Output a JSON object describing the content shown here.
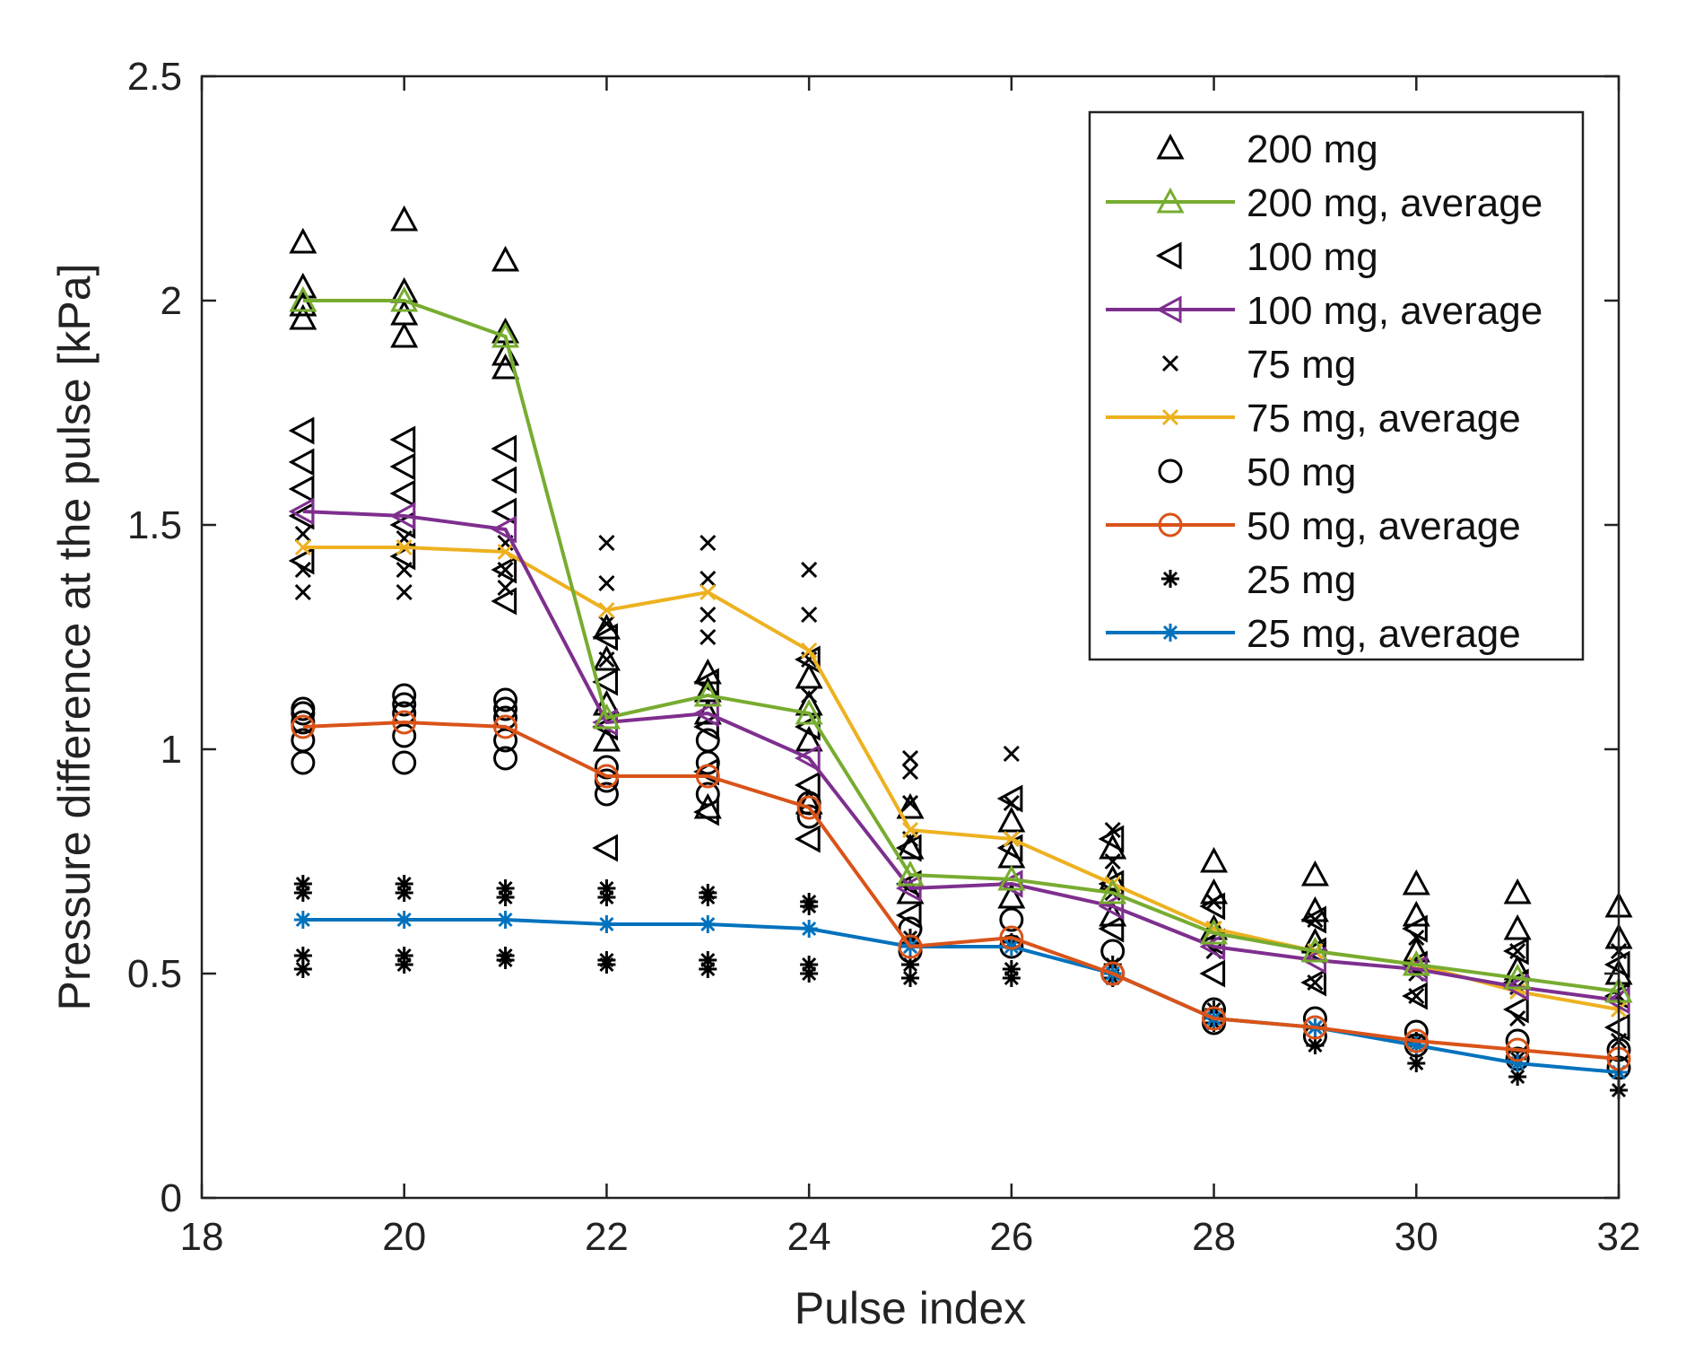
{
  "chart_data": {
    "type": "scatter",
    "title": "",
    "xlabel": "Pulse index",
    "ylabel": "Pressure difference at the pulse [kPa]",
    "xlim": [
      18,
      32
    ],
    "ylim": [
      0,
      2.5
    ],
    "xticks": [
      18,
      20,
      22,
      24,
      26,
      28,
      30,
      32
    ],
    "xtick_labels": [
      "18",
      "20",
      "22",
      "24",
      "26",
      "28",
      "30",
      "32"
    ],
    "yticks": [
      0,
      0.5,
      1,
      1.5,
      2,
      2.5
    ],
    "ytick_labels": [
      "0",
      "0.5",
      "1",
      "1.5",
      "2",
      "2.5"
    ],
    "grid": false,
    "legend_position": "top-right",
    "x": [
      19,
      20,
      21,
      22,
      23,
      24,
      25,
      26,
      27,
      28,
      29,
      30,
      31,
      32
    ],
    "series": [
      {
        "name": "200 mg",
        "kind": "scatter",
        "marker": "triangle-up",
        "color": "#000000",
        "points": [
          [
            19,
            2.13
          ],
          [
            19,
            2.03
          ],
          [
            19,
            1.99
          ],
          [
            19,
            1.96
          ],
          [
            20,
            2.18
          ],
          [
            20,
            2.02
          ],
          [
            20,
            1.97
          ],
          [
            20,
            1.92
          ],
          [
            21,
            2.09
          ],
          [
            21,
            1.93
          ],
          [
            21,
            1.88
          ],
          [
            21,
            1.85
          ],
          [
            22,
            1.27
          ],
          [
            22,
            1.2
          ],
          [
            22,
            1.1
          ],
          [
            22,
            1.02
          ],
          [
            23,
            1.17
          ],
          [
            23,
            1.13
          ],
          [
            23,
            1.08
          ],
          [
            23,
            0.87
          ],
          [
            24,
            1.16
          ],
          [
            24,
            1.1
          ],
          [
            24,
            1.02
          ],
          [
            24,
            0.88
          ],
          [
            25,
            0.87
          ],
          [
            25,
            0.78
          ],
          [
            25,
            0.68
          ],
          [
            26,
            0.84
          ],
          [
            26,
            0.76
          ],
          [
            26,
            0.67
          ],
          [
            27,
            0.78
          ],
          [
            27,
            0.71
          ],
          [
            27,
            0.63
          ],
          [
            28,
            0.75
          ],
          [
            28,
            0.68
          ],
          [
            28,
            0.6
          ],
          [
            29,
            0.72
          ],
          [
            29,
            0.64
          ],
          [
            29,
            0.57
          ],
          [
            30,
            0.7
          ],
          [
            30,
            0.63
          ],
          [
            30,
            0.55
          ],
          [
            31,
            0.68
          ],
          [
            31,
            0.6
          ],
          [
            31,
            0.51
          ],
          [
            32,
            0.65
          ],
          [
            32,
            0.58
          ],
          [
            32,
            0.5
          ]
        ]
      },
      {
        "name": "200 mg, average",
        "kind": "line",
        "marker": "triangle-up",
        "color": "#77AC30",
        "values": [
          2.0,
          2.0,
          1.92,
          1.07,
          1.12,
          1.08,
          0.72,
          0.71,
          0.68,
          0.59,
          0.55,
          0.52,
          0.49,
          0.46
        ]
      },
      {
        "name": "100 mg",
        "kind": "scatter",
        "marker": "triangle-left",
        "color": "#000000",
        "points": [
          [
            19,
            1.71
          ],
          [
            19,
            1.64
          ],
          [
            19,
            1.58
          ],
          [
            19,
            1.52
          ],
          [
            19,
            1.42
          ],
          [
            20,
            1.69
          ],
          [
            20,
            1.63
          ],
          [
            20,
            1.57
          ],
          [
            20,
            1.5
          ],
          [
            20,
            1.43
          ],
          [
            21,
            1.67
          ],
          [
            21,
            1.6
          ],
          [
            21,
            1.53
          ],
          [
            21,
            1.4
          ],
          [
            21,
            1.33
          ],
          [
            22,
            1.25
          ],
          [
            22,
            1.15
          ],
          [
            22,
            1.05
          ],
          [
            22,
            0.78
          ],
          [
            23,
            1.15
          ],
          [
            23,
            1.05
          ],
          [
            23,
            0.95
          ],
          [
            23,
            0.86
          ],
          [
            24,
            1.2
          ],
          [
            24,
            1.05
          ],
          [
            24,
            0.92
          ],
          [
            24,
            0.8
          ],
          [
            25,
            0.78
          ],
          [
            25,
            0.7
          ],
          [
            25,
            0.63
          ],
          [
            26,
            0.89
          ],
          [
            26,
            0.78
          ],
          [
            26,
            0.7
          ],
          [
            27,
            0.8
          ],
          [
            27,
            0.7
          ],
          [
            27,
            0.6
          ],
          [
            28,
            0.65
          ],
          [
            28,
            0.57
          ],
          [
            28,
            0.5
          ],
          [
            29,
            0.62
          ],
          [
            29,
            0.55
          ],
          [
            29,
            0.48
          ],
          [
            30,
            0.6
          ],
          [
            30,
            0.52
          ],
          [
            30,
            0.45
          ],
          [
            31,
            0.55
          ],
          [
            31,
            0.48
          ],
          [
            31,
            0.42
          ],
          [
            32,
            0.52
          ],
          [
            32,
            0.45
          ],
          [
            32,
            0.38
          ]
        ]
      },
      {
        "name": "100 mg, average",
        "kind": "line",
        "marker": "triangle-left",
        "color": "#7E2F8E",
        "values": [
          1.53,
          1.52,
          1.49,
          1.06,
          1.08,
          0.98,
          0.69,
          0.7,
          0.65,
          0.56,
          0.53,
          0.51,
          0.47,
          0.44
        ]
      },
      {
        "name": "75 mg",
        "kind": "scatter",
        "marker": "x",
        "color": "#000000",
        "points": [
          [
            19,
            1.48
          ],
          [
            19,
            1.4
          ],
          [
            19,
            1.35
          ],
          [
            20,
            1.47
          ],
          [
            20,
            1.4
          ],
          [
            20,
            1.35
          ],
          [
            21,
            1.46
          ],
          [
            21,
            1.4
          ],
          [
            21,
            1.36
          ],
          [
            22,
            1.46
          ],
          [
            22,
            1.37
          ],
          [
            22,
            1.28
          ],
          [
            22,
            1.2
          ],
          [
            23,
            1.46
          ],
          [
            23,
            1.38
          ],
          [
            23,
            1.3
          ],
          [
            23,
            1.25
          ],
          [
            24,
            1.4
          ],
          [
            24,
            1.3
          ],
          [
            24,
            1.2
          ],
          [
            24,
            1.12
          ],
          [
            25,
            0.98
          ],
          [
            25,
            0.95
          ],
          [
            25,
            0.88
          ],
          [
            25,
            0.8
          ],
          [
            26,
            0.99
          ],
          [
            26,
            0.88
          ],
          [
            26,
            0.8
          ],
          [
            27,
            0.82
          ],
          [
            27,
            0.75
          ],
          [
            27,
            0.68
          ],
          [
            28,
            0.66
          ],
          [
            28,
            0.6
          ],
          [
            28,
            0.55
          ],
          [
            29,
            0.62
          ],
          [
            29,
            0.55
          ],
          [
            29,
            0.48
          ],
          [
            30,
            0.58
          ],
          [
            30,
            0.5
          ],
          [
            30,
            0.45
          ],
          [
            31,
            0.55
          ],
          [
            31,
            0.47
          ],
          [
            31,
            0.4
          ],
          [
            32,
            0.55
          ],
          [
            32,
            0.45
          ],
          [
            32,
            0.35
          ]
        ]
      },
      {
        "name": "75 mg, average",
        "kind": "line",
        "marker": "x",
        "color": "#EDB120",
        "values": [
          1.45,
          1.45,
          1.44,
          1.31,
          1.35,
          1.22,
          0.82,
          0.8,
          0.7,
          0.6,
          0.55,
          0.52,
          0.46,
          0.42
        ]
      },
      {
        "name": "50 mg",
        "kind": "scatter",
        "marker": "circle",
        "color": "#000000",
        "points": [
          [
            19,
            1.09
          ],
          [
            19,
            1.08
          ],
          [
            19,
            1.06
          ],
          [
            19,
            1.02
          ],
          [
            19,
            0.97
          ],
          [
            20,
            1.12
          ],
          [
            20,
            1.1
          ],
          [
            20,
            1.08
          ],
          [
            20,
            1.03
          ],
          [
            20,
            0.97
          ],
          [
            21,
            1.11
          ],
          [
            21,
            1.09
          ],
          [
            21,
            1.07
          ],
          [
            21,
            1.02
          ],
          [
            21,
            0.98
          ],
          [
            22,
            0.96
          ],
          [
            22,
            0.93
          ],
          [
            22,
            0.9
          ],
          [
            23,
            1.02
          ],
          [
            23,
            0.97
          ],
          [
            23,
            0.9
          ],
          [
            24,
            0.88
          ],
          [
            24,
            0.85
          ],
          [
            25,
            0.6
          ],
          [
            25,
            0.55
          ],
          [
            26,
            0.62
          ],
          [
            26,
            0.56
          ],
          [
            27,
            0.55
          ],
          [
            27,
            0.5
          ],
          [
            28,
            0.42
          ],
          [
            28,
            0.39
          ],
          [
            29,
            0.4
          ],
          [
            29,
            0.36
          ],
          [
            30,
            0.37
          ],
          [
            30,
            0.34
          ],
          [
            31,
            0.35
          ],
          [
            31,
            0.31
          ],
          [
            32,
            0.33
          ],
          [
            32,
            0.29
          ]
        ]
      },
      {
        "name": "50 mg, average",
        "kind": "line",
        "marker": "circle",
        "color": "#D95319",
        "values": [
          1.05,
          1.06,
          1.05,
          0.94,
          0.94,
          0.87,
          0.56,
          0.58,
          0.5,
          0.4,
          0.38,
          0.35,
          0.33,
          0.31
        ]
      },
      {
        "name": "25 mg",
        "kind": "scatter",
        "marker": "asterisk",
        "color": "#000000",
        "points": [
          [
            19,
            0.7
          ],
          [
            19,
            0.68
          ],
          [
            19,
            0.54
          ],
          [
            19,
            0.51
          ],
          [
            20,
            0.7
          ],
          [
            20,
            0.68
          ],
          [
            20,
            0.54
          ],
          [
            20,
            0.52
          ],
          [
            21,
            0.69
          ],
          [
            21,
            0.67
          ],
          [
            21,
            0.54
          ],
          [
            21,
            0.53
          ],
          [
            22,
            0.69
          ],
          [
            22,
            0.67
          ],
          [
            22,
            0.53
          ],
          [
            22,
            0.52
          ],
          [
            23,
            0.68
          ],
          [
            23,
            0.67
          ],
          [
            23,
            0.53
          ],
          [
            23,
            0.51
          ],
          [
            24,
            0.66
          ],
          [
            24,
            0.65
          ],
          [
            24,
            0.52
          ],
          [
            24,
            0.5
          ],
          [
            25,
            0.58
          ],
          [
            25,
            0.52
          ],
          [
            25,
            0.49
          ],
          [
            26,
            0.57
          ],
          [
            26,
            0.51
          ],
          [
            26,
            0.49
          ],
          [
            27,
            0.52
          ],
          [
            27,
            0.49
          ],
          [
            28,
            0.42
          ],
          [
            28,
            0.39
          ],
          [
            29,
            0.38
          ],
          [
            29,
            0.34
          ],
          [
            30,
            0.35
          ],
          [
            30,
            0.3
          ],
          [
            31,
            0.31
          ],
          [
            31,
            0.27
          ],
          [
            32,
            0.28
          ],
          [
            32,
            0.24
          ]
        ]
      },
      {
        "name": "25 mg, average",
        "kind": "line",
        "marker": "asterisk",
        "color": "#0072BD",
        "values": [
          0.62,
          0.62,
          0.62,
          0.61,
          0.61,
          0.6,
          0.56,
          0.56,
          0.5,
          0.4,
          0.38,
          0.34,
          0.3,
          0.28
        ]
      }
    ]
  }
}
